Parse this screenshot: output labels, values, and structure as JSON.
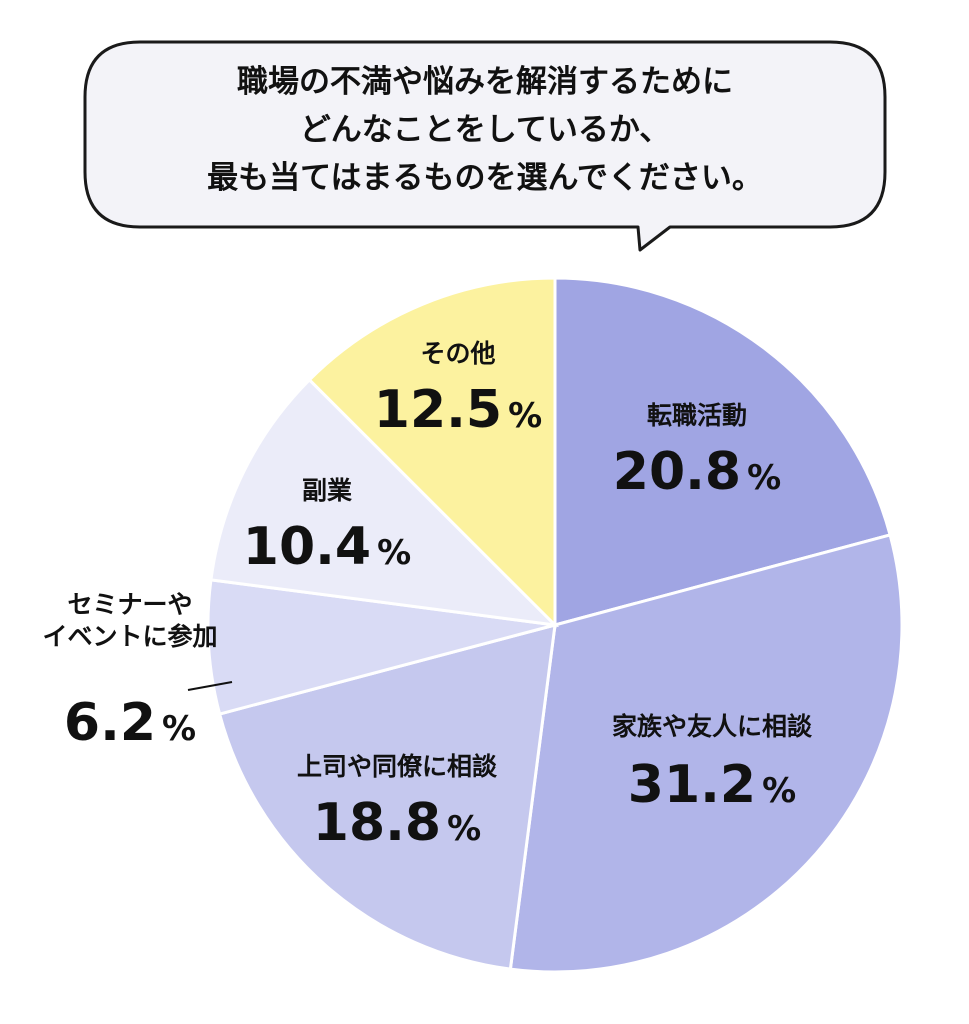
{
  "question": {
    "lines": [
      "職場の不満や悩みを解消するために",
      "どんなことをしているか、",
      "最も当てはまるものを選んでください。"
    ]
  },
  "chart_data": {
    "type": "pie",
    "categories": [
      "転職活動",
      "家族や友人に相談",
      "上司や同僚に相談",
      "セミナーやイベントに参加",
      "副業",
      "その他"
    ],
    "values": [
      20.8,
      31.2,
      18.8,
      6.2,
      10.4,
      12.5
    ],
    "labels": [
      [
        "転職活動"
      ],
      [
        "家族や友人に相談"
      ],
      [
        "上司や同僚に相談"
      ],
      [
        "セミナーや",
        "イベントに参加"
      ],
      [
        "副業"
      ],
      [
        "その他"
      ]
    ],
    "value_labels": [
      "20.8",
      "31.2",
      "18.8",
      "6.2",
      "10.4",
      "12.5"
    ],
    "unit": "%",
    "colors": [
      "#a0a5e3",
      "#b1b5e9",
      "#c5c8ee",
      "#d9dbf5",
      "#ebecf9",
      "#fcf29f"
    ],
    "start": "12 o'clock",
    "direction": "clockwise"
  }
}
